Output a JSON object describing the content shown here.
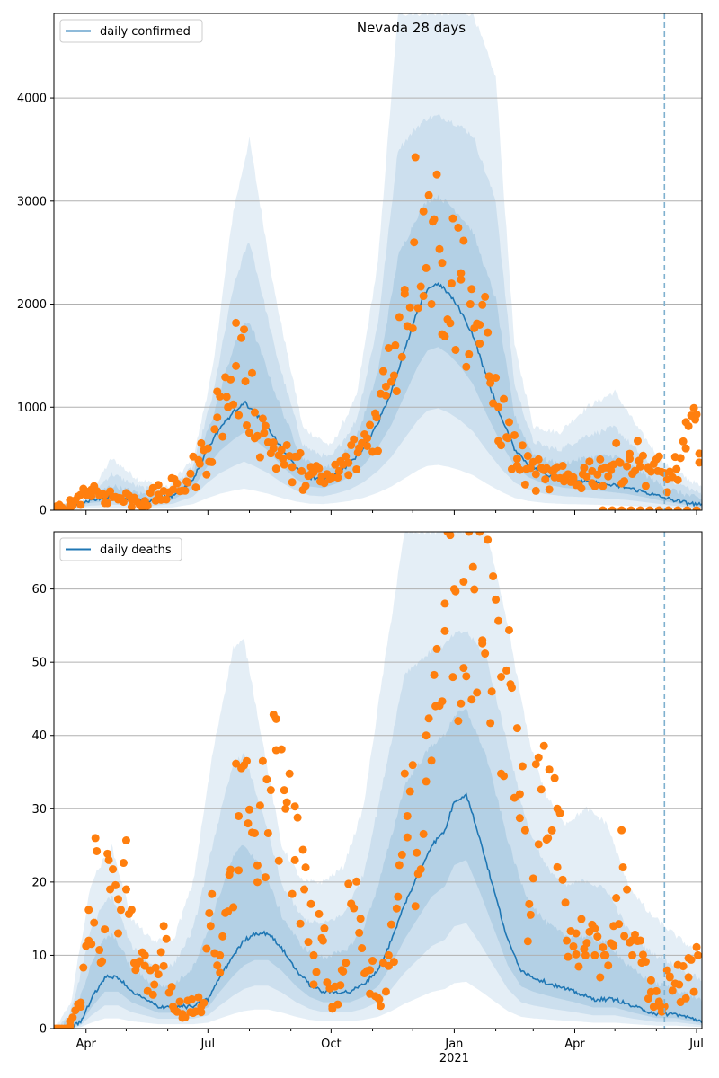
{
  "chart_data": [
    {
      "type": "line",
      "title": "Nevada 28 days",
      "xlabel": "",
      "ylabel": "",
      "x_range": [
        "2020-03-08",
        "2021-07-05"
      ],
      "ylim": [
        0,
        4820
      ],
      "y_ticks": [
        0,
        1000,
        2000,
        3000,
        4000
      ],
      "y_tick_labels": [
        "0",
        "1000",
        "2000",
        "3000",
        "4000"
      ],
      "grid": "horizontal",
      "legend": {
        "position": "top-left",
        "entries": [
          "daily confirmed"
        ]
      },
      "forecast_start": "2021-06-07",
      "colors": {
        "line": "#1f77b4",
        "points": "#ff7f0e",
        "band": "#1f77b4",
        "marker_line": "#7fb1cf"
      },
      "series": [
        {
          "name": "daily confirmed",
          "kind": "line",
          "x": [
            "2020-03-08",
            "2020-03-20",
            "2020-04-05",
            "2020-04-20",
            "2020-05-05",
            "2020-05-20",
            "2020-06-05",
            "2020-06-20",
            "2020-07-01",
            "2020-07-10",
            "2020-07-20",
            "2020-07-28",
            "2020-08-05",
            "2020-08-15",
            "2020-08-25",
            "2020-09-05",
            "2020-09-15",
            "2020-09-25",
            "2020-10-05",
            "2020-10-15",
            "2020-10-25",
            "2020-11-05",
            "2020-11-15",
            "2020-11-25",
            "2020-12-05",
            "2020-12-12",
            "2020-12-20",
            "2020-12-28",
            "2021-01-05",
            "2021-01-15",
            "2021-01-25",
            "2021-02-05",
            "2021-02-15",
            "2021-02-25",
            "2021-03-10",
            "2021-03-25",
            "2021-04-10",
            "2021-04-25",
            "2021-05-10",
            "2021-05-25",
            "2021-06-07",
            "2021-06-20",
            "2021-07-05"
          ],
          "y": [
            0,
            40,
            100,
            120,
            110,
            90,
            140,
            300,
            600,
            800,
            950,
            1050,
            950,
            800,
            600,
            420,
            320,
            300,
            360,
            450,
            600,
            850,
            1150,
            1550,
            1950,
            2150,
            2200,
            2100,
            1950,
            1700,
            1300,
            900,
            600,
            450,
            350,
            300,
            280,
            250,
            220,
            170,
            120,
            80,
            50
          ]
        },
        {
          "name": "",
          "kind": "band_upper_outer",
          "x": [
            "2020-03-08",
            "2020-04-01",
            "2020-04-20",
            "2020-05-10",
            "2020-06-01",
            "2020-06-20",
            "2020-07-05",
            "2020-07-20",
            "2020-08-01",
            "2020-08-20",
            "2020-09-10",
            "2020-10-01",
            "2020-10-20",
            "2020-11-05",
            "2020-11-20",
            "2020-12-01",
            "2020-12-15",
            "2021-01-01",
            "2021-01-15",
            "2021-02-01",
            "2021-02-15",
            "2021-03-01",
            "2021-03-20",
            "2021-04-10",
            "2021-05-01",
            "2021-05-20",
            "2021-06-07",
            "2021-07-05"
          ],
          "y": [
            30,
            100,
            500,
            300,
            220,
            500,
            1400,
            2900,
            3600,
            2100,
            800,
            620,
            1100,
            2400,
            4820,
            4820,
            4820,
            4820,
            4820,
            4200,
            1600,
            820,
            750,
            1000,
            1150,
            760,
            450,
            220
          ]
        },
        {
          "name": "",
          "kind": "observed_points",
          "x": [
            "2020-03-10",
            "2020-03-20",
            "2020-03-28",
            "2020-04-05",
            "2020-04-15",
            "2020-04-25",
            "2020-05-05",
            "2020-05-15",
            "2020-05-25",
            "2020-06-05",
            "2020-06-15",
            "2020-06-25",
            "2020-07-01",
            "2020-07-08",
            "2020-07-15",
            "2020-07-22",
            "2020-07-29",
            "2020-08-05",
            "2020-08-12",
            "2020-08-19",
            "2020-08-26",
            "2020-09-02",
            "2020-09-09",
            "2020-09-16",
            "2020-09-23",
            "2020-09-30",
            "2020-10-07",
            "2020-10-14",
            "2020-10-21",
            "2020-10-28",
            "2020-11-04",
            "2020-11-11",
            "2020-11-18",
            "2020-11-25",
            "2020-12-02",
            "2020-12-09",
            "2020-12-16",
            "2020-12-23",
            "2020-12-30",
            "2021-01-06",
            "2021-01-13",
            "2021-01-20",
            "2021-01-27",
            "2021-02-03",
            "2021-02-10",
            "2021-02-17",
            "2021-02-24",
            "2021-03-03",
            "2021-03-10",
            "2021-03-17",
            "2021-03-24",
            "2021-03-31",
            "2021-04-07",
            "2021-04-14",
            "2021-04-21",
            "2021-04-28",
            "2021-05-05",
            "2021-05-12",
            "2021-05-19",
            "2021-05-26",
            "2021-06-02",
            "2021-06-09",
            "2021-06-16",
            "2021-06-23",
            "2021-06-30",
            "2021-07-03"
          ],
          "y": [
            10,
            50,
            150,
            200,
            150,
            120,
            100,
            90,
            150,
            200,
            280,
            450,
            600,
            900,
            1100,
            1400,
            1250,
            950,
            750,
            600,
            500,
            420,
            380,
            350,
            280,
            300,
            380,
            460,
            560,
            700,
            900,
            1200,
            1600,
            2100,
            2600,
            2900,
            2800,
            2400,
            2200,
            2300,
            2000,
            1800,
            1300,
            1000,
            700,
            500,
            400,
            350,
            300,
            320,
            280,
            300,
            350,
            380,
            400,
            430,
            460,
            500,
            480,
            420,
            380,
            300,
            400,
            600,
            880,
            550
          ]
        },
        {
          "name": "",
          "kind": "observed_zero_points",
          "x": [
            "2021-04-22",
            "2021-04-29",
            "2021-05-06",
            "2021-05-13",
            "2021-05-20",
            "2021-05-27",
            "2021-06-03",
            "2021-06-10",
            "2021-06-17",
            "2021-06-24",
            "2021-07-01"
          ],
          "y": [
            0,
            0,
            0,
            0,
            0,
            0,
            0,
            0,
            0,
            0,
            0
          ]
        }
      ]
    },
    {
      "type": "line",
      "title": "",
      "xlabel": "",
      "ylabel": "",
      "x_range": [
        "2020-03-08",
        "2021-07-05"
      ],
      "ylim": [
        0,
        67.8
      ],
      "y_ticks": [
        0,
        10,
        20,
        30,
        40,
        50,
        60
      ],
      "y_tick_labels": [
        "0",
        "10",
        "20",
        "30",
        "40",
        "50",
        "60"
      ],
      "x_tick_labels": [
        {
          "date": "2020-04-01",
          "label": "Apr"
        },
        {
          "date": "2020-07-01",
          "label": "Jul"
        },
        {
          "date": "2020-10-01",
          "label": "Oct"
        },
        {
          "date": "2021-01-01",
          "label": "Jan"
        },
        {
          "date": "2021-04-01",
          "label": "Apr"
        },
        {
          "date": "2021-07-01",
          "label": "Jul"
        }
      ],
      "x_year_label": {
        "date": "2021-01-01",
        "label": "2021"
      },
      "grid": "horizontal",
      "legend": {
        "position": "top-left",
        "entries": [
          "daily deaths"
        ]
      },
      "forecast_start": "2021-06-07",
      "colors": {
        "line": "#1f77b4",
        "points": "#ff7f0e",
        "band": "#1f77b4",
        "marker_line": "#7fb1cf"
      },
      "series": [
        {
          "name": "daily deaths",
          "kind": "line",
          "x": [
            "2020-03-08",
            "2020-03-20",
            "2020-03-28",
            "2020-04-05",
            "2020-04-15",
            "2020-04-25",
            "2020-05-05",
            "2020-05-15",
            "2020-05-25",
            "2020-06-05",
            "2020-06-20",
            "2020-07-01",
            "2020-07-10",
            "2020-07-20",
            "2020-07-28",
            "2020-08-05",
            "2020-08-15",
            "2020-08-25",
            "2020-09-05",
            "2020-09-15",
            "2020-09-25",
            "2020-10-05",
            "2020-10-15",
            "2020-10-25",
            "2020-11-05",
            "2020-11-15",
            "2020-11-25",
            "2020-12-05",
            "2020-12-15",
            "2020-12-25",
            "2021-01-01",
            "2021-01-10",
            "2021-01-20",
            "2021-02-01",
            "2021-02-10",
            "2021-02-20",
            "2021-03-01",
            "2021-03-15",
            "2021-04-01",
            "2021-04-15",
            "2021-05-01",
            "2021-05-15",
            "2021-06-01",
            "2021-06-15",
            "2021-07-05"
          ],
          "y": [
            0,
            0,
            1,
            4,
            7,
            7,
            5,
            4,
            3,
            3,
            3,
            4,
            7,
            10,
            12,
            13,
            13,
            11,
            8,
            6,
            5,
            5,
            5,
            6,
            8,
            12,
            17,
            21,
            25,
            27,
            31,
            32,
            26,
            18,
            12,
            8,
            7,
            6,
            5,
            4,
            4,
            3,
            2,
            2,
            1
          ]
        },
        {
          "name": "",
          "kind": "band_upper_outer",
          "x": [
            "2020-03-08",
            "2020-03-20",
            "2020-04-05",
            "2020-04-20",
            "2020-05-05",
            "2020-05-20",
            "2020-06-05",
            "2020-06-20",
            "2020-07-05",
            "2020-07-20",
            "2020-07-28",
            "2020-08-10",
            "2020-08-25",
            "2020-09-10",
            "2020-09-25",
            "2020-10-10",
            "2020-10-25",
            "2020-11-10",
            "2020-11-25",
            "2020-12-10",
            "2020-12-25",
            "2021-01-10",
            "2021-01-25",
            "2021-02-10",
            "2021-02-25",
            "2021-03-10",
            "2021-03-25",
            "2021-04-10",
            "2021-04-25",
            "2021-05-10",
            "2021-05-25",
            "2021-06-07",
            "2021-06-20",
            "2021-07-05"
          ],
          "y": [
            0,
            3,
            20,
            25,
            15,
            12,
            12,
            20,
            38,
            52,
            53,
            40,
            25,
            20,
            20,
            22,
            30,
            50,
            67.8,
            67.8,
            67.8,
            67.8,
            67.8,
            55,
            40,
            32,
            28,
            30,
            28,
            20,
            16,
            14,
            12,
            10
          ]
        },
        {
          "name": "",
          "kind": "observed_points",
          "x": [
            "2020-03-20",
            "2020-03-28",
            "2020-04-03",
            "2020-04-08",
            "2020-04-12",
            "2020-04-18",
            "2020-04-25",
            "2020-05-01",
            "2020-05-08",
            "2020-05-15",
            "2020-05-22",
            "2020-05-29",
            "2020-06-05",
            "2020-06-12",
            "2020-06-19",
            "2020-06-26",
            "2020-07-03",
            "2020-07-10",
            "2020-07-17",
            "2020-07-24",
            "2020-07-31",
            "2020-08-07",
            "2020-08-14",
            "2020-08-21",
            "2020-08-28",
            "2020-09-04",
            "2020-09-11",
            "2020-09-18",
            "2020-09-25",
            "2020-10-02",
            "2020-10-09",
            "2020-10-16",
            "2020-10-23",
            "2020-10-30",
            "2020-11-06",
            "2020-11-13",
            "2020-11-20",
            "2020-11-27",
            "2020-12-04",
            "2020-12-11",
            "2020-12-18",
            "2020-12-25",
            "2021-01-01",
            "2021-01-08",
            "2021-01-15",
            "2021-01-22",
            "2021-01-29",
            "2021-02-05",
            "2021-02-12",
            "2021-02-19",
            "2021-02-26",
            "2021-03-05",
            "2021-03-12",
            "2021-03-19",
            "2021-03-26",
            "2021-04-02",
            "2021-04-09",
            "2021-04-16",
            "2021-04-23",
            "2021-04-30",
            "2021-05-07",
            "2021-05-14",
            "2021-05-21",
            "2021-05-28",
            "2021-06-04",
            "2021-06-11",
            "2021-06-18",
            "2021-06-25",
            "2021-07-02"
          ],
          "y": [
            1,
            3,
            12,
            26,
            9,
            23,
            13,
            19,
            8,
            10,
            6,
            14,
            3,
            2,
            4,
            3,
            14,
            10,
            21,
            29,
            28,
            20,
            34,
            38,
            30,
            23,
            19,
            10,
            12,
            3,
            8,
            17,
            15,
            8,
            4,
            10,
            18,
            29,
            24,
            40,
            44,
            58,
            60,
            61,
            63,
            53,
            46,
            48,
            47,
            32,
            17,
            37,
            26,
            30,
            12,
            13,
            10,
            10,
            10,
            14,
            22,
            10,
            9,
            5,
            3,
            7,
            6,
            7,
            10
          ]
        }
      ]
    }
  ]
}
